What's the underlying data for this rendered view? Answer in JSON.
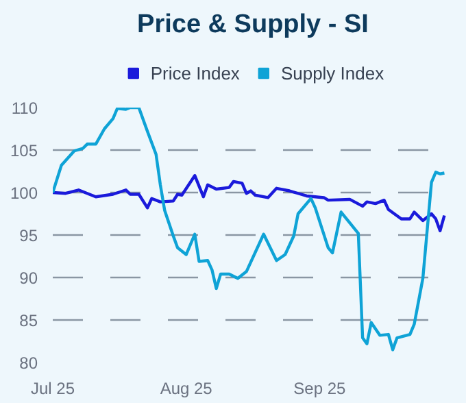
{
  "chart_data": {
    "type": "line",
    "title": "Price & Supply - SI",
    "xlim": [
      "2025-07-01",
      "2025-10-02"
    ],
    "xticks": [
      {
        "value": "2025-07-01",
        "label": "Jul 25"
      },
      {
        "value": "2025-08-01",
        "label": "Aug 25"
      },
      {
        "value": "2025-09-01",
        "label": "Sep 25"
      }
    ],
    "ylim": [
      80,
      110
    ],
    "yticks": [
      80,
      85,
      90,
      95,
      100,
      105,
      110
    ],
    "grid": "y",
    "legend": "top",
    "line_style": "solid",
    "marker": "none",
    "series": [
      {
        "name": "Price Index",
        "color": "#1a1adb",
        "x": [
          "2025-07-01",
          "2025-07-04",
          "2025-07-07",
          "2025-07-11",
          "2025-07-15",
          "2025-07-18",
          "2025-07-19",
          "2025-07-21",
          "2025-07-23",
          "2025-07-24",
          "2025-07-26",
          "2025-07-29",
          "2025-07-30",
          "2025-07-31",
          "2025-08-03",
          "2025-08-05",
          "2025-08-06",
          "2025-08-08",
          "2025-08-11",
          "2025-08-12",
          "2025-08-14",
          "2025-08-15",
          "2025-08-16",
          "2025-08-17",
          "2025-08-20",
          "2025-08-22",
          "2025-08-25",
          "2025-08-27",
          "2025-08-29",
          "2025-09-02",
          "2025-09-03",
          "2025-09-08",
          "2025-09-11",
          "2025-09-12",
          "2025-09-14",
          "2025-09-16",
          "2025-09-17",
          "2025-09-20",
          "2025-09-22",
          "2025-09-23",
          "2025-09-25",
          "2025-09-27",
          "2025-09-28",
          "2025-09-29",
          "2025-09-30"
        ],
        "values": [
          100,
          99.9,
          100.3,
          99.5,
          99.8,
          100.3,
          99.8,
          99.8,
          98.2,
          99.3,
          98.9,
          99.0,
          99.8,
          99.7,
          102.0,
          99.5,
          100.9,
          100.4,
          100.6,
          101.3,
          101.1,
          99.9,
          100.2,
          99.7,
          99.4,
          100.5,
          100.2,
          99.9,
          99.6,
          99.4,
          99.1,
          99.2,
          98.4,
          98.9,
          98.7,
          99.1,
          98.0,
          96.9,
          96.9,
          97.7,
          96.7,
          97.5,
          96.9,
          95.5,
          97.3
        ]
      },
      {
        "name": "Supply Index",
        "color": "#0fa3d6",
        "x": [
          "2025-07-01",
          "2025-07-03",
          "2025-07-06",
          "2025-07-08",
          "2025-07-09",
          "2025-07-11",
          "2025-07-13",
          "2025-07-15",
          "2025-07-16",
          "2025-07-18",
          "2025-07-19",
          "2025-07-21",
          "2025-07-23",
          "2025-07-25",
          "2025-07-26",
          "2025-07-27",
          "2025-07-29",
          "2025-07-30",
          "2025-08-01",
          "2025-08-03",
          "2025-08-04",
          "2025-08-06",
          "2025-08-07",
          "2025-08-08",
          "2025-08-09",
          "2025-08-11",
          "2025-08-13",
          "2025-08-15",
          "2025-08-19",
          "2025-08-22",
          "2025-08-24",
          "2025-08-26",
          "2025-08-27",
          "2025-08-30",
          "2025-08-31",
          "2025-09-03",
          "2025-09-04",
          "2025-09-06",
          "2025-09-10",
          "2025-09-11",
          "2025-09-12",
          "2025-09-13",
          "2025-09-15",
          "2025-09-17",
          "2025-09-18",
          "2025-09-19",
          "2025-09-22",
          "2025-09-23",
          "2025-09-25",
          "2025-09-27",
          "2025-09-28",
          "2025-09-29",
          "2025-09-30"
        ],
        "values": [
          100,
          103.2,
          104.9,
          105.2,
          105.7,
          105.7,
          107.5,
          108.7,
          109.9,
          109.8,
          110,
          110,
          107.2,
          104.5,
          100.9,
          97.9,
          94.9,
          93.5,
          92.7,
          95.1,
          91.9,
          92.0,
          90.9,
          88.7,
          90.4,
          90.4,
          89.9,
          90.7,
          95.1,
          92.0,
          92.7,
          94.9,
          97.5,
          99.3,
          98.2,
          93.5,
          92.9,
          97.7,
          95.2,
          82.9,
          82.2,
          84.7,
          83.2,
          83.3,
          81.5,
          82.9,
          83.3,
          84.5,
          89.9,
          101.2,
          102.4,
          102.2,
          102.3
        ]
      }
    ]
  }
}
